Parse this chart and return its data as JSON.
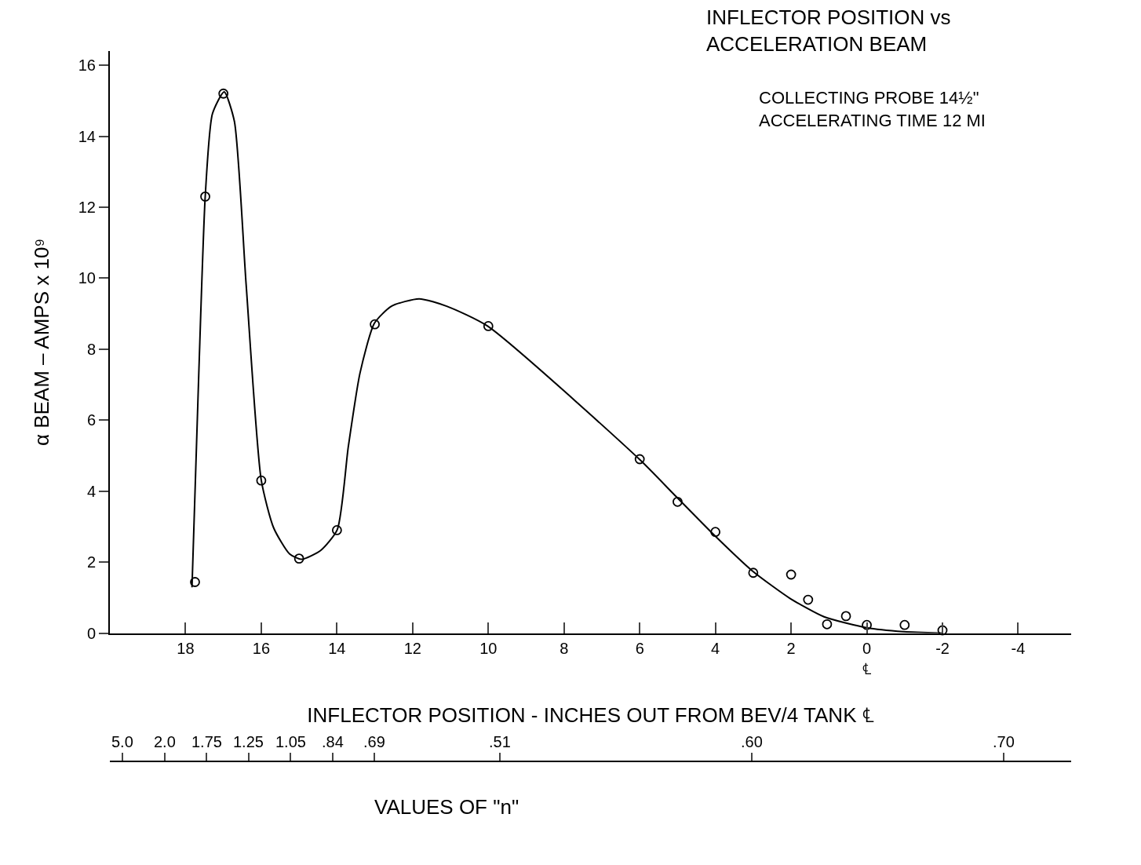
{
  "chart_data": {
    "type": "scatter",
    "title": "INFLECTOR POSITION vs\nACCELERATION BEAM",
    "subtitle": "COLLECTING PROBE 14½\"\nACCELERATING TIME 12 MI",
    "xlabel": "INFLECTOR POSITION - INCHES OUT FROM BEV/4 TANK ℄",
    "ylabel": "α BEAM – AMPS x 10⁹",
    "x2label": "VALUES OF \"n\"",
    "xlim": [
      20,
      -5.4
    ],
    "xticks": [
      18,
      16,
      14,
      12,
      10,
      8,
      6,
      4,
      2,
      {
        "value": 0,
        "label": "0\n℄"
      },
      -2,
      -4
    ],
    "annotations": [
      "5.0",
      "2.0",
      "1.75",
      "1.25",
      "1.05",
      ".84",
      ".69",
      ".51",
      ".60",
      ".70"
    ],
    "ylim": [
      0,
      16.4
    ],
    "yticks": [
      0,
      2,
      4,
      6,
      8,
      10,
      12,
      14,
      16
    ],
    "legend": false,
    "series": [
      {
        "type": "scatter",
        "marker": "circle",
        "color": "#000000",
        "x": [
          17.75,
          17.48,
          17.0,
          16.0,
          15.0,
          14.0,
          13.0,
          10.0,
          6.0,
          5.0,
          4.0,
          3.0,
          2.0,
          1.55,
          1.05,
          0.55,
          0.0,
          -1.0,
          -2.0
        ],
        "values": [
          1.44,
          12.3,
          15.2,
          4.3,
          2.1,
          2.9,
          8.7,
          8.65,
          4.9,
          3.7,
          2.85,
          1.7,
          1.65,
          0.94,
          0.25,
          0.48,
          0.23,
          0.23,
          0.08
        ]
      },
      {
        "type": "line",
        "marker": "none",
        "line_style": "solid",
        "color": "#000000",
        "x": [
          17.83,
          17.65,
          17.48,
          17.29,
          16.98,
          16.71,
          16.4,
          16.0,
          15.67,
          15.25,
          14.93,
          14.43,
          13.99,
          13.7,
          13.39,
          13.01,
          12.56,
          11.83,
          11.1,
          10.02,
          6.01,
          5.04,
          4.02,
          3.02,
          2.03,
          1.13,
          0.0,
          -0.97,
          -1.99
        ],
        "values": [
          1.29,
          7.33,
          12.31,
          14.63,
          15.25,
          14.42,
          9.83,
          4.31,
          2.96,
          2.23,
          2.08,
          2.33,
          2.92,
          5.25,
          7.33,
          8.73,
          9.21,
          9.42,
          9.21,
          8.65,
          4.9,
          3.85,
          2.75,
          1.75,
          0.98,
          0.46,
          0.15,
          0.04,
          0.0
        ]
      }
    ]
  }
}
